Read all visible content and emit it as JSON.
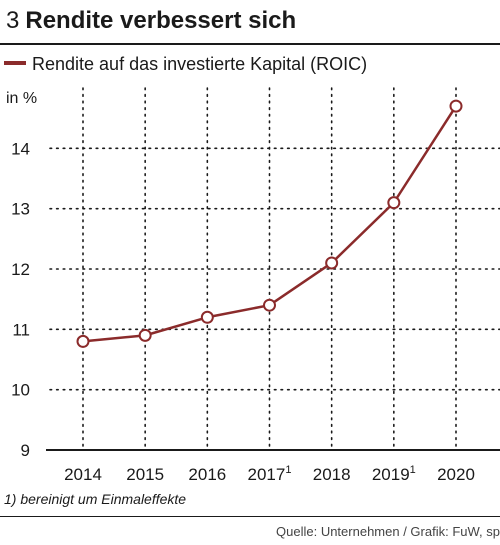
{
  "header": {
    "number": "3",
    "title": "Rendite verbessert sich"
  },
  "legend": {
    "label": "Rendite auf das investierte Kapital (ROIC)",
    "color": "#8b2b2b"
  },
  "unit_label": "in %",
  "footnote": "1) bereinigt um Einmaleffekte",
  "source": "Quelle: Unternehmen / Grafik: FuW, sp",
  "chart_data": {
    "type": "line",
    "categories": [
      "2014",
      "2015",
      "2016",
      "2017",
      "2018",
      "2019",
      "2020"
    ],
    "category_footnote_markers": [
      "",
      "",
      "",
      "1",
      "",
      "1",
      ""
    ],
    "series": [
      {
        "name": "Rendite auf das investierte Kapital (ROIC)",
        "color": "#8b2b2b",
        "values": [
          10.8,
          10.9,
          11.2,
          11.4,
          12.1,
          13.1,
          14.7
        ]
      }
    ],
    "yticks": [
      9,
      10,
      11,
      12,
      13,
      14
    ],
    "ylim": [
      9,
      15
    ],
    "ylabel": "in %",
    "grid": true
  }
}
